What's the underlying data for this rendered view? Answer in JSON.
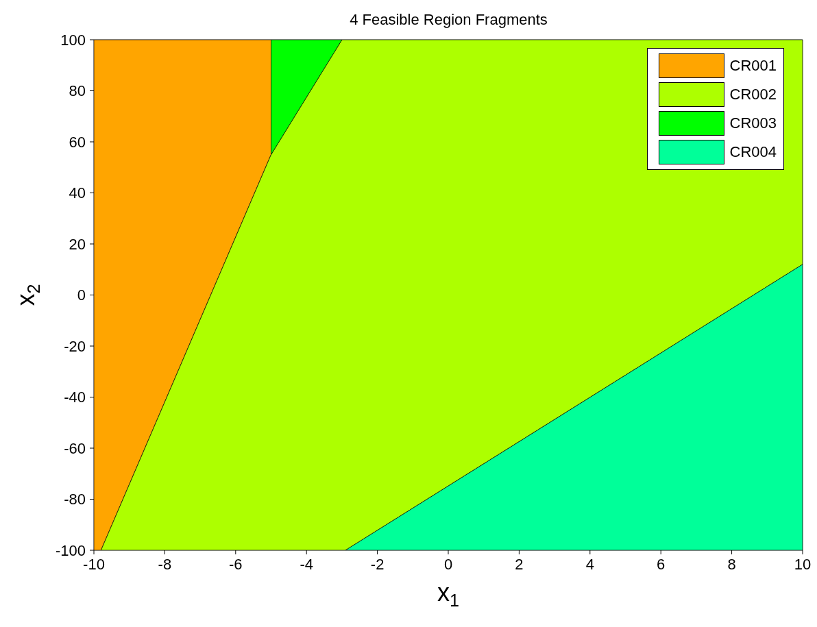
{
  "chart_data": {
    "type": "area",
    "title": "4 Feasible Region Fragments",
    "xlabel": "x$_{1}$",
    "ylabel": "x$_{2}$",
    "xlim": [
      -10,
      10
    ],
    "xticks": [
      -10,
      -8,
      -6,
      -4,
      -2,
      0,
      2,
      4,
      6,
      8,
      10
    ],
    "ylim": [
      -100,
      100
    ],
    "yticks": [
      -100,
      -80,
      -60,
      -40,
      -20,
      0,
      20,
      40,
      60,
      80,
      100
    ],
    "legend": "top right",
    "series": [
      {
        "name": "CR001",
        "color": "#ffa500",
        "x": [
          -10,
          -10,
          -5,
          -5,
          -9.8
        ],
        "values": [
          -100,
          100,
          100,
          55,
          -100
        ]
      },
      {
        "name": "CR002",
        "color": "#adff00",
        "x": [
          -9.8,
          -5,
          -3,
          10,
          10,
          -2.9
        ],
        "values": [
          -100,
          55,
          100,
          100,
          12,
          -100
        ]
      },
      {
        "name": "CR003",
        "color": "#00ff00",
        "x": [
          -5,
          -5,
          -3,
          -5
        ],
        "values": [
          55,
          100,
          100,
          55
        ]
      },
      {
        "name": "CR004",
        "color": "#00ff99",
        "x": [
          -2.9,
          10,
          10
        ],
        "values": [
          -100,
          12,
          -100
        ]
      }
    ]
  }
}
